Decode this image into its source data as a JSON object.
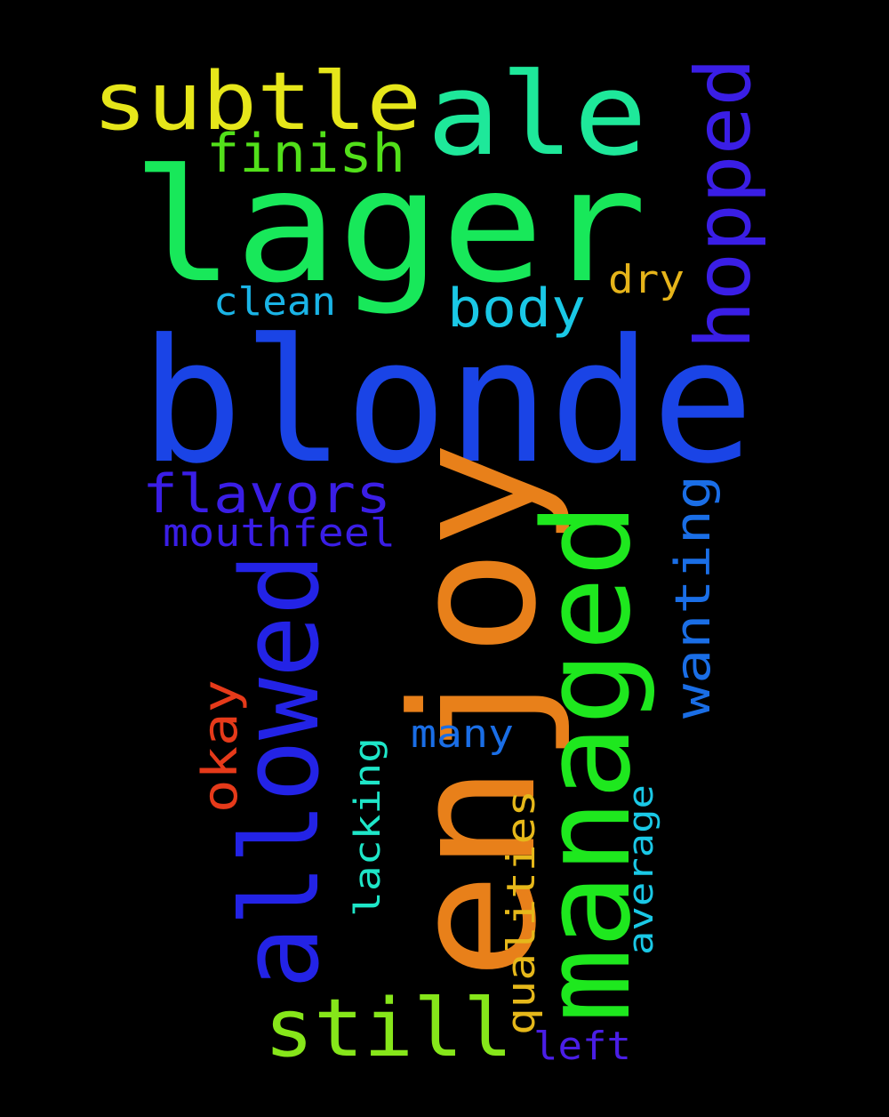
{
  "background": "#000000",
  "words": [
    {
      "text": "blonde",
      "color": "#1a44e6"
    },
    {
      "text": "enjoy",
      "color": "#e8801a"
    },
    {
      "text": "lager",
      "color": "#18e85a"
    },
    {
      "text": "managed",
      "color": "#1ee81e"
    },
    {
      "text": "allowed",
      "color": "#2323e6"
    },
    {
      "text": "ale",
      "color": "#1ee89a"
    },
    {
      "text": "subtle",
      "color": "#e6e61a"
    },
    {
      "text": "hopped",
      "color": "#3a1ee6"
    },
    {
      "text": "still",
      "color": "#86e61a"
    },
    {
      "text": "flavors",
      "color": "#3a1ee6"
    },
    {
      "text": "wanting",
      "color": "#1a6ee6"
    },
    {
      "text": "finish",
      "color": "#52e01a"
    },
    {
      "text": "body",
      "color": "#1ac8e6"
    },
    {
      "text": "okay",
      "color": "#e63a1a"
    },
    {
      "text": "qualities",
      "color": "#e6b81a"
    },
    {
      "text": "mouthfeel",
      "color": "#3a1ee6"
    },
    {
      "text": "lacking",
      "color": "#1ee6c8"
    },
    {
      "text": "average",
      "color": "#1ac8e6"
    },
    {
      "text": "many",
      "color": "#1a6ee6"
    },
    {
      "text": "clean",
      "color": "#1ab4e6"
    },
    {
      "text": "dry",
      "color": "#e6b41a"
    },
    {
      "text": "left",
      "color": "#4a1ee6"
    }
  ]
}
